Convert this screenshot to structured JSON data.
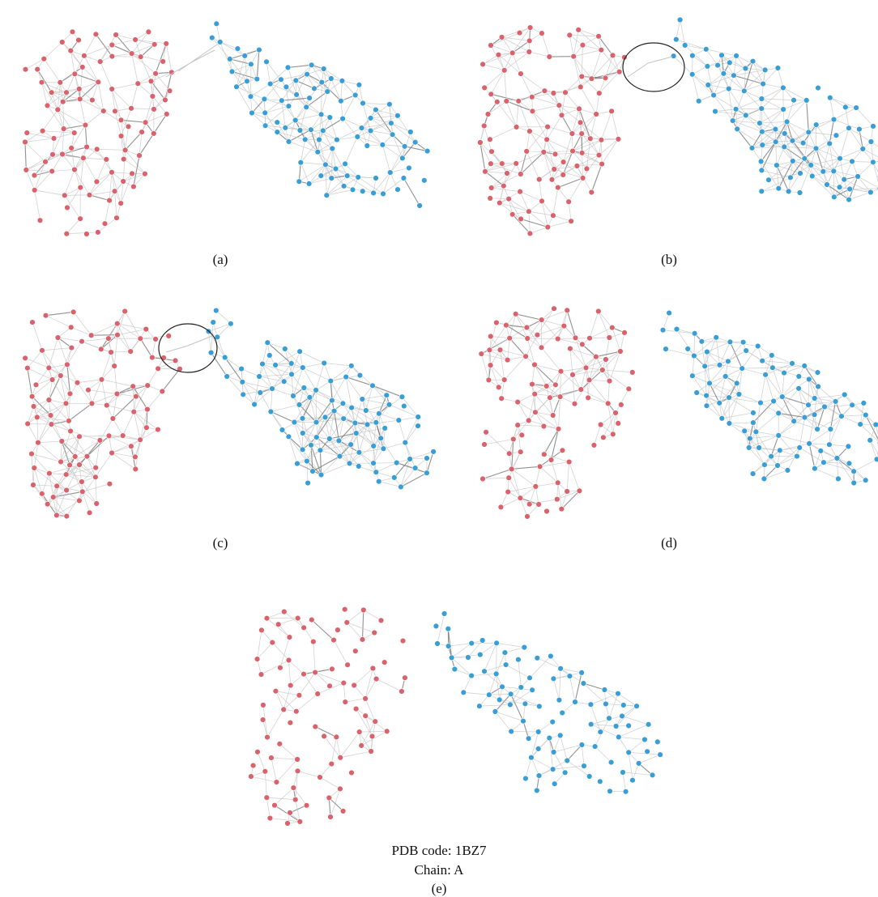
{
  "figure": {
    "panels": [
      {
        "id": "a",
        "label": "(a)",
        "circled_link": false,
        "split": "none"
      },
      {
        "id": "b",
        "label": "(b)",
        "circled_link": true,
        "split": "none"
      },
      {
        "id": "c",
        "label": "(c)",
        "circled_link": true,
        "split": "none"
      },
      {
        "id": "d",
        "label": "(d)",
        "circled_link": false,
        "split": "separated"
      },
      {
        "id": "e",
        "label": "(e)",
        "circled_link": false,
        "split": "fragmented"
      }
    ],
    "pdb_code": "PDB code: 1BZ7",
    "chain": "Chain: A"
  },
  "colors": {
    "cluster_left": "#d9626c",
    "cluster_right": "#3a9ed6",
    "edge": "#c4c4c4",
    "edge_dark": "#777777",
    "circle": "#222222"
  }
}
